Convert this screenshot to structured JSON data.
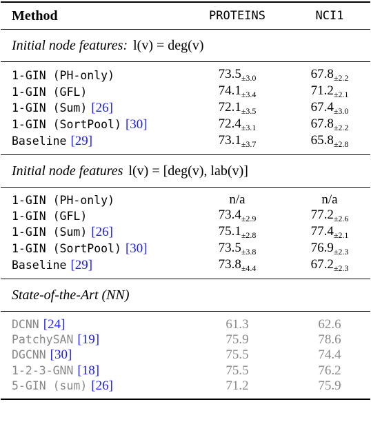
{
  "header": {
    "method": "Method",
    "col1": "PROTEINS",
    "col2": "NCI1"
  },
  "sections": [
    {
      "title": "Initial node features:",
      "formula": "l(v) = deg(v)",
      "color": "#000000",
      "rows": [
        {
          "method": "1-GIN (PH-only)",
          "cite": null,
          "proteins": {
            "mean": "73.5",
            "std": "±3.0"
          },
          "nci1": {
            "mean": "67.8",
            "std": "±2.2"
          }
        },
        {
          "method": "1-GIN (GFL)",
          "cite": null,
          "proteins": {
            "mean": "74.1",
            "std": "±3.4"
          },
          "nci1": {
            "mean": "71.2",
            "std": "±2.1"
          }
        },
        {
          "method": "1-GIN (Sum)",
          "cite": "[26]",
          "proteins": {
            "mean": "72.1",
            "std": "±3.5"
          },
          "nci1": {
            "mean": "67.4",
            "std": "±3.0"
          }
        },
        {
          "method": "1-GIN (SortPool)",
          "cite": "[30]",
          "proteins": {
            "mean": "72.4",
            "std": "±3.1"
          },
          "nci1": {
            "mean": "67.8",
            "std": "±2.2"
          }
        },
        {
          "method": "Baseline",
          "cite": "[29]",
          "proteins": {
            "mean": "73.1",
            "std": "±3.7"
          },
          "nci1": {
            "mean": "65.8",
            "std": "±2.8"
          }
        }
      ]
    },
    {
      "title": "Initial node features",
      "formula": "l(v) = [deg(v), lab(v)]",
      "color": "#000000",
      "rows": [
        {
          "method": "1-GIN (PH-only)",
          "cite": null,
          "proteins": {
            "mean": "n/a",
            "std": null
          },
          "nci1": {
            "mean": "n/a",
            "std": null
          }
        },
        {
          "method": "1-GIN (GFL)",
          "cite": null,
          "proteins": {
            "mean": "73.4",
            "std": "±2.9"
          },
          "nci1": {
            "mean": "77.2",
            "std": "±2.6"
          }
        },
        {
          "method": "1-GIN (Sum)",
          "cite": "[26]",
          "proteins": {
            "mean": "75.1",
            "std": "±2.8"
          },
          "nci1": {
            "mean": "77.4",
            "std": "±2.1"
          }
        },
        {
          "method": "1-GIN (SortPool)",
          "cite": "[30]",
          "proteins": {
            "mean": "73.5",
            "std": "±3.8"
          },
          "nci1": {
            "mean": "76.9",
            "std": "±2.3"
          }
        },
        {
          "method": "Baseline",
          "cite": "[29]",
          "proteins": {
            "mean": "73.8",
            "std": "±4.4"
          },
          "nci1": {
            "mean": "67.2",
            "std": "±2.3"
          }
        }
      ]
    },
    {
      "title": "State-of-the-Art (NN)",
      "formula": null,
      "color": "#888888",
      "rows": [
        {
          "method": "DCNN",
          "cite": "[24]",
          "proteins": {
            "mean": "61.3",
            "std": null
          },
          "nci1": {
            "mean": "62.6",
            "std": null
          }
        },
        {
          "method": "PatchySAN",
          "cite": "[19]",
          "proteins": {
            "mean": "75.9",
            "std": null
          },
          "nci1": {
            "mean": "78.6",
            "std": null
          }
        },
        {
          "method": "DGCNN",
          "cite": "[30]",
          "proteins": {
            "mean": "75.5",
            "std": null
          },
          "nci1": {
            "mean": "74.4",
            "std": null
          }
        },
        {
          "method": "1-2-3-GNN",
          "cite": "[18]",
          "proteins": {
            "mean": "75.5",
            "std": null
          },
          "nci1": {
            "mean": "76.2",
            "std": null
          }
        },
        {
          "method": "5-GIN (sum)",
          "cite": "[26]",
          "proteins": {
            "mean": "71.2",
            "std": null
          },
          "nci1": {
            "mean": "75.9",
            "std": null
          }
        }
      ]
    }
  ]
}
